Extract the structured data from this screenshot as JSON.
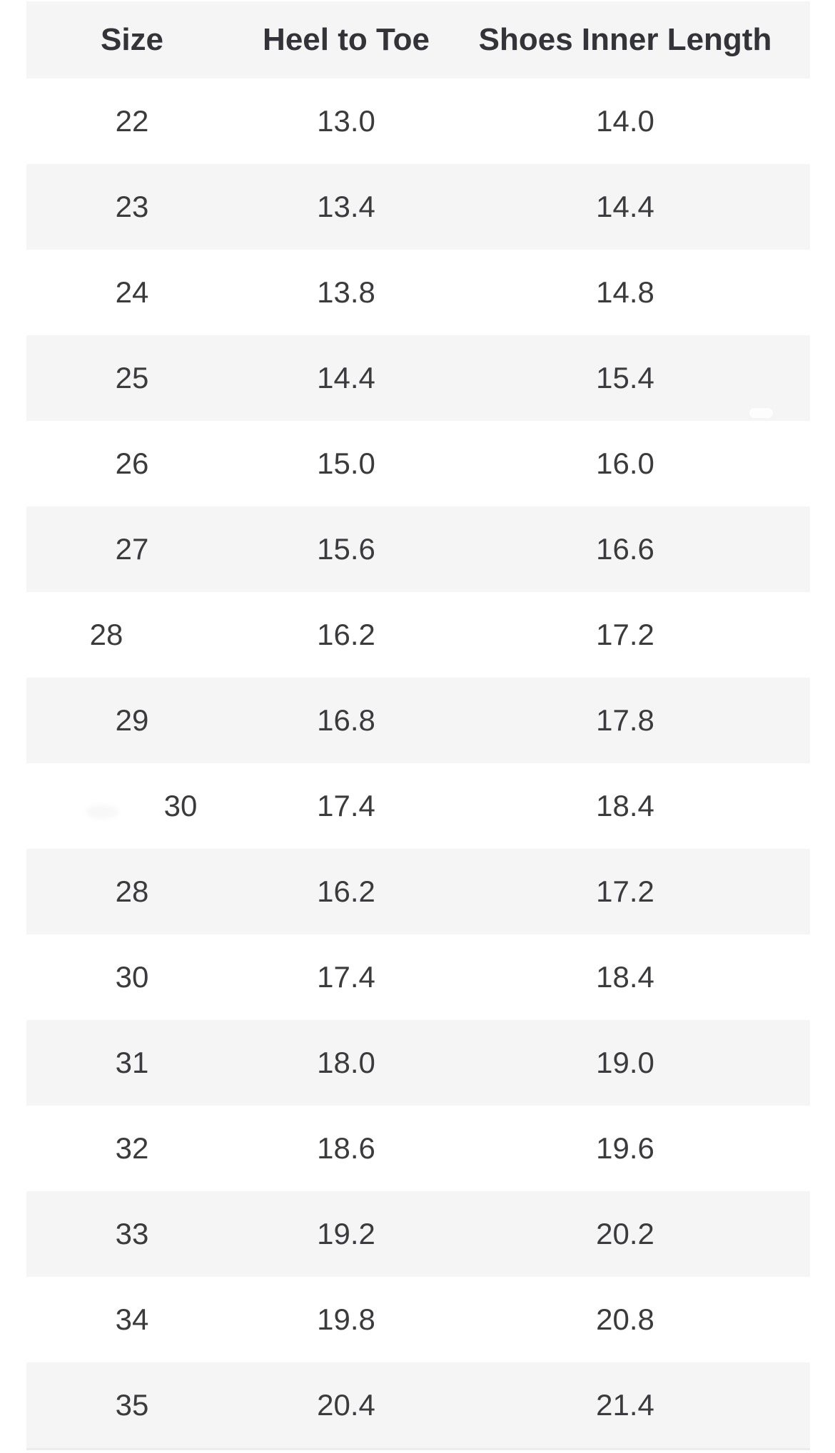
{
  "table": {
    "columns": [
      {
        "id": "size",
        "label": "Size"
      },
      {
        "id": "heel",
        "label": "Heel to Toe"
      },
      {
        "id": "inner",
        "label": "Shoes Inner Length"
      }
    ],
    "rows": [
      {
        "size": "22",
        "heel": "13.0",
        "inner": "14.0"
      },
      {
        "size": "23",
        "heel": "13.4",
        "inner": "14.4"
      },
      {
        "size": "24",
        "heel": "13.8",
        "inner": "14.8"
      },
      {
        "size": "25",
        "heel": "14.4",
        "inner": "15.4",
        "artifact": "white-pill"
      },
      {
        "size": "26",
        "heel": "15.0",
        "inner": "16.0"
      },
      {
        "size": "27",
        "heel": "15.6",
        "inner": "16.6"
      },
      {
        "size": "28",
        "heel": "16.2",
        "inner": "17.2",
        "size_offset": "left"
      },
      {
        "size": "29",
        "heel": "16.8",
        "inner": "17.8"
      },
      {
        "size": "30",
        "heel": "17.4",
        "inner": "18.4",
        "size_offset": "right",
        "artifact": "smudge"
      },
      {
        "size": "28",
        "heel": "16.2",
        "inner": "17.2"
      },
      {
        "size": "30",
        "heel": "17.4",
        "inner": "18.4"
      },
      {
        "size": "31",
        "heel": "18.0",
        "inner": "19.0"
      },
      {
        "size": "32",
        "heel": "18.6",
        "inner": "19.6"
      },
      {
        "size": "33",
        "heel": "19.2",
        "inner": "20.2"
      },
      {
        "size": "34",
        "heel": "19.8",
        "inner": "20.8"
      },
      {
        "size": "35",
        "heel": "20.4",
        "inner": "21.4"
      }
    ]
  },
  "chart_data": {
    "type": "table",
    "columns": [
      "Size",
      "Heel to Toe",
      "Shoes Inner Length"
    ],
    "rows": [
      [
        "22",
        "13.0",
        "14.0"
      ],
      [
        "23",
        "13.4",
        "14.4"
      ],
      [
        "24",
        "13.8",
        "14.8"
      ],
      [
        "25",
        "14.4",
        "15.4"
      ],
      [
        "26",
        "15.0",
        "16.0"
      ],
      [
        "27",
        "15.6",
        "16.6"
      ],
      [
        "28",
        "16.2",
        "17.2"
      ],
      [
        "29",
        "16.8",
        "17.8"
      ],
      [
        "30",
        "17.4",
        "18.4"
      ],
      [
        "28",
        "16.2",
        "17.2"
      ],
      [
        "30",
        "17.4",
        "18.4"
      ],
      [
        "31",
        "18.0",
        "19.0"
      ],
      [
        "32",
        "18.6",
        "19.6"
      ],
      [
        "33",
        "19.2",
        "20.2"
      ],
      [
        "34",
        "19.8",
        "20.8"
      ],
      [
        "35",
        "20.4",
        "21.4"
      ]
    ],
    "layout": {
      "header_background": "#f5f5f6",
      "alternating_row_background": "#f5f5f6",
      "grid": false,
      "legend": false
    }
  },
  "colors": {
    "row_alt_bg": "#f5f5f6",
    "header_text": "#333338",
    "cell_text": "#3b3b3e",
    "bottom_border": "#ececee",
    "page_bg": "#ffffff"
  }
}
